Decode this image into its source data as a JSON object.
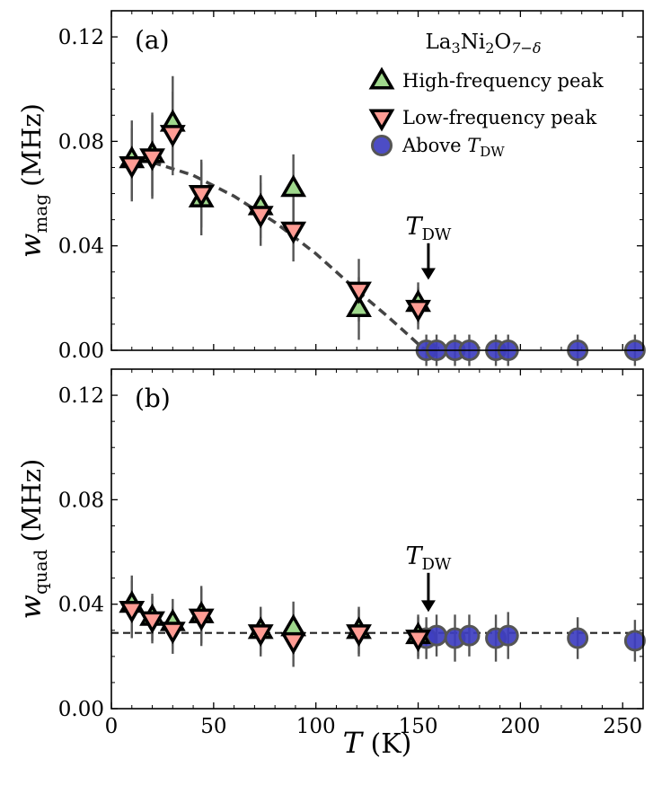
{
  "chart_data": [
    {
      "panel_label": "(a)",
      "type": "scatter",
      "xlabel": "T (K)",
      "ylabel": "w_mag (MHz)",
      "ylabel_main": "w",
      "ylabel_sub": "mag",
      "ylabel_unit": "(MHz)",
      "xlim": [
        0,
        260
      ],
      "ylim": [
        0,
        0.13
      ],
      "xticks": [
        "0",
        "50",
        "100",
        "150",
        "200",
        "250"
      ],
      "yticks": [
        "0.00",
        "0.04",
        "0.08",
        "0.12"
      ],
      "ytick_values": [
        0,
        0.04,
        0.08,
        0.12
      ],
      "legend": {
        "position": "top-right",
        "title": "La3Ni2O7−δ",
        "title_parts": [
          "La",
          "3",
          "Ni",
          "2",
          "O",
          "7−δ"
        ],
        "entries": [
          {
            "label": "High-frequency peak",
            "marker": "triangle-up",
            "color": "#9fd88c"
          },
          {
            "label": "Low-frequency peak",
            "marker": "triangle-down",
            "color": "#ff9c94"
          },
          {
            "label": "Above T_DW",
            "label_main": "Above ",
            "label_T": "T",
            "label_sub": "DW",
            "marker": "circle",
            "color": "#3e3ec0"
          }
        ]
      },
      "annotation": {
        "text": "T_DW",
        "main": "T",
        "sub": "DW",
        "x": 155,
        "arrow_top": 0.041,
        "arrow_bottom": 0.027
      },
      "series": [
        {
          "name": "High-frequency peak",
          "marker": "triangle-up",
          "color": "#9fd88c",
          "points": [
            {
              "x": 10,
              "y": 0.073,
              "err": 0.015
            },
            {
              "x": 20,
              "y": 0.075,
              "err": 0.016
            },
            {
              "x": 30,
              "y": 0.087,
              "err": 0.018
            },
            {
              "x": 44,
              "y": 0.058,
              "err": 0.014
            },
            {
              "x": 73,
              "y": 0.055,
              "err": 0.012
            },
            {
              "x": 89,
              "y": 0.062,
              "err": 0.013
            },
            {
              "x": 121,
              "y": 0.016,
              "err": 0.012
            },
            {
              "x": 150,
              "y": 0.018,
              "err": 0.008
            }
          ]
        },
        {
          "name": "Low-frequency peak",
          "marker": "triangle-down",
          "color": "#ff9c94",
          "points": [
            {
              "x": 10,
              "y": 0.071,
              "err": 0.014
            },
            {
              "x": 20,
              "y": 0.074,
              "err": 0.016
            },
            {
              "x": 30,
              "y": 0.083,
              "err": 0.016
            },
            {
              "x": 44,
              "y": 0.06,
              "err": 0.013
            },
            {
              "x": 73,
              "y": 0.052,
              "err": 0.012
            },
            {
              "x": 89,
              "y": 0.046,
              "err": 0.012
            },
            {
              "x": 121,
              "y": 0.023,
              "err": 0.012
            },
            {
              "x": 150,
              "y": 0.016,
              "err": 0.008
            }
          ]
        },
        {
          "name": "Above T_DW",
          "marker": "circle",
          "color": "#3e3ec0",
          "points": [
            {
              "x": 154,
              "y": 0.0,
              "err": 0.006
            },
            {
              "x": 159,
              "y": 0.0,
              "err": 0.006
            },
            {
              "x": 168,
              "y": 0.0,
              "err": 0.006
            },
            {
              "x": 175,
              "y": 0.0,
              "err": 0.006
            },
            {
              "x": 188,
              "y": 0.0,
              "err": 0.006
            },
            {
              "x": 194,
              "y": 0.0,
              "err": 0.006
            },
            {
              "x": 228,
              "y": 0.0,
              "err": 0.006
            },
            {
              "x": 256,
              "y": 0.0,
              "err": 0.006
            }
          ]
        }
      ],
      "fit": {
        "style": "dashed",
        "x": [
          20,
          40,
          60,
          80,
          100,
          120,
          135,
          145,
          152,
          155
        ],
        "y": [
          0.072,
          0.067,
          0.059,
          0.049,
          0.037,
          0.023,
          0.013,
          0.006,
          0.001,
          0.0
        ]
      }
    },
    {
      "panel_label": "(b)",
      "type": "scatter",
      "xlabel": "T (K)",
      "ylabel": "w_quad (MHz)",
      "ylabel_main": "w",
      "ylabel_sub": "quad",
      "ylabel_unit": "(MHz)",
      "xlim": [
        0,
        260
      ],
      "ylim": [
        0,
        0.13
      ],
      "xticks": [
        "0",
        "50",
        "100",
        "150",
        "200",
        "250"
      ],
      "yticks": [
        "0.00",
        "0.04",
        "0.08",
        "0.12"
      ],
      "ytick_values": [
        0,
        0.04,
        0.08,
        0.12
      ],
      "xlabel_main": "T",
      "xlabel_unit": " (K)",
      "annotation": {
        "text": "T_DW",
        "main": "T",
        "sub": "DW",
        "x": 155,
        "arrow_top": 0.052,
        "arrow_bottom": 0.037
      },
      "series": [
        {
          "name": "High-frequency peak",
          "marker": "triangle-up",
          "color": "#9fd88c",
          "points": [
            {
              "x": 10,
              "y": 0.04,
              "err": 0.011
            },
            {
              "x": 20,
              "y": 0.035,
              "err": 0.009
            },
            {
              "x": 30,
              "y": 0.033,
              "err": 0.009
            },
            {
              "x": 44,
              "y": 0.036,
              "err": 0.011
            },
            {
              "x": 73,
              "y": 0.03,
              "err": 0.009
            },
            {
              "x": 89,
              "y": 0.031,
              "err": 0.01
            },
            {
              "x": 121,
              "y": 0.03,
              "err": 0.009
            },
            {
              "x": 150,
              "y": 0.028,
              "err": 0.008
            }
          ]
        },
        {
          "name": "Low-frequency peak",
          "marker": "triangle-down",
          "color": "#ff9c94",
          "points": [
            {
              "x": 10,
              "y": 0.038,
              "err": 0.011
            },
            {
              "x": 20,
              "y": 0.034,
              "err": 0.009
            },
            {
              "x": 30,
              "y": 0.03,
              "err": 0.009
            },
            {
              "x": 44,
              "y": 0.035,
              "err": 0.011
            },
            {
              "x": 73,
              "y": 0.029,
              "err": 0.009
            },
            {
              "x": 89,
              "y": 0.026,
              "err": 0.01
            },
            {
              "x": 121,
              "y": 0.029,
              "err": 0.009
            },
            {
              "x": 150,
              "y": 0.027,
              "err": 0.008
            }
          ]
        },
        {
          "name": "Above T_DW",
          "marker": "circle",
          "color": "#3e3ec0",
          "points": [
            {
              "x": 154,
              "y": 0.027,
              "err": 0.008
            },
            {
              "x": 159,
              "y": 0.028,
              "err": 0.008
            },
            {
              "x": 168,
              "y": 0.027,
              "err": 0.009
            },
            {
              "x": 175,
              "y": 0.028,
              "err": 0.008
            },
            {
              "x": 188,
              "y": 0.027,
              "err": 0.009
            },
            {
              "x": 194,
              "y": 0.028,
              "err": 0.009
            },
            {
              "x": 228,
              "y": 0.027,
              "err": 0.008
            },
            {
              "x": 256,
              "y": 0.026,
              "err": 0.008
            }
          ]
        }
      ],
      "fit": {
        "style": "dashed",
        "x": [
          0,
          260
        ],
        "y": [
          0.029,
          0.029
        ]
      }
    }
  ]
}
